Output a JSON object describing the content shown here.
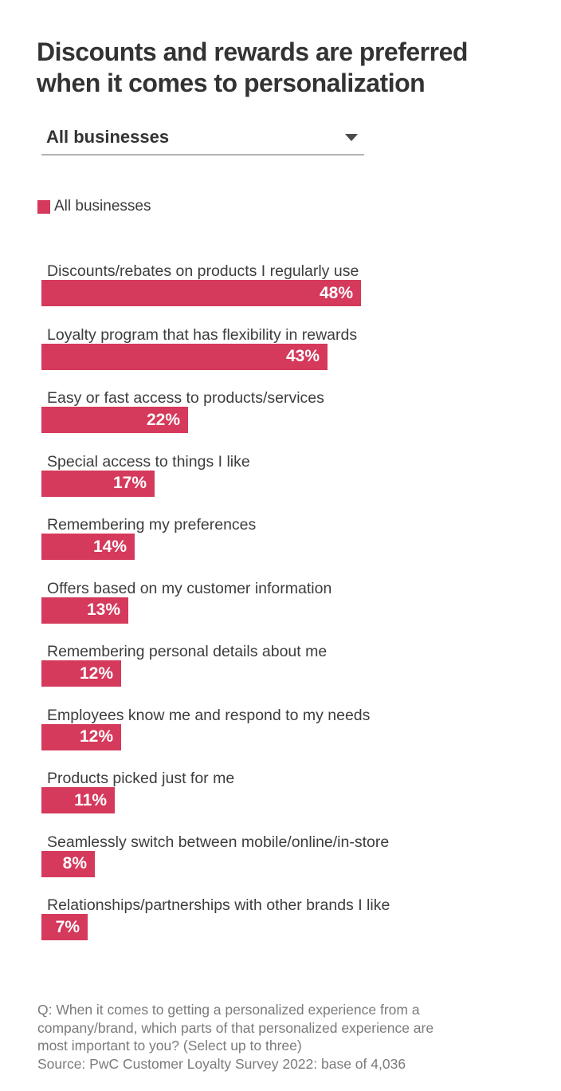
{
  "header": {
    "title": "Discounts and rewards are preferred when it comes to personalization"
  },
  "filter": {
    "selected_value": "All businesses"
  },
  "legend": {
    "label": "All businesses"
  },
  "colors": {
    "bar": "#d5395b",
    "title_text": "#333333",
    "label_text": "#3d3d3d",
    "footnote_text": "#7b7b7b"
  },
  "chart_data": {
    "type": "bar",
    "orientation": "horizontal",
    "series_name": "All businesses",
    "unit": "%",
    "categories": [
      "Discounts/rebates on products I regularly use",
      "Loyalty program that has flexibility in rewards",
      "Easy or fast access to products/services",
      "Special access to things I like",
      "Remembering my preferences",
      "Offers based on my customer information",
      "Remembering personal details about me",
      "Employees know me and respond to my needs",
      "Products picked just for me",
      "Seamlessly switch between mobile/online/in-store",
      "Relationships/partnerships with other brands I like"
    ],
    "values": [
      48,
      43,
      22,
      17,
      14,
      13,
      12,
      12,
      11,
      8,
      7
    ],
    "value_label_position": "inside-end",
    "value_axis_visible": false,
    "gridlines": false,
    "legend_position": "top-left"
  },
  "footer": {
    "question_lines": [
      "Q: When it comes to getting a personalized experience from a",
      "company/brand, which parts of that personalized experience are",
      "most important to you? (Select up to three)"
    ],
    "source": "Source: PwC Customer Loyalty Survey 2022: base of 4,036"
  }
}
